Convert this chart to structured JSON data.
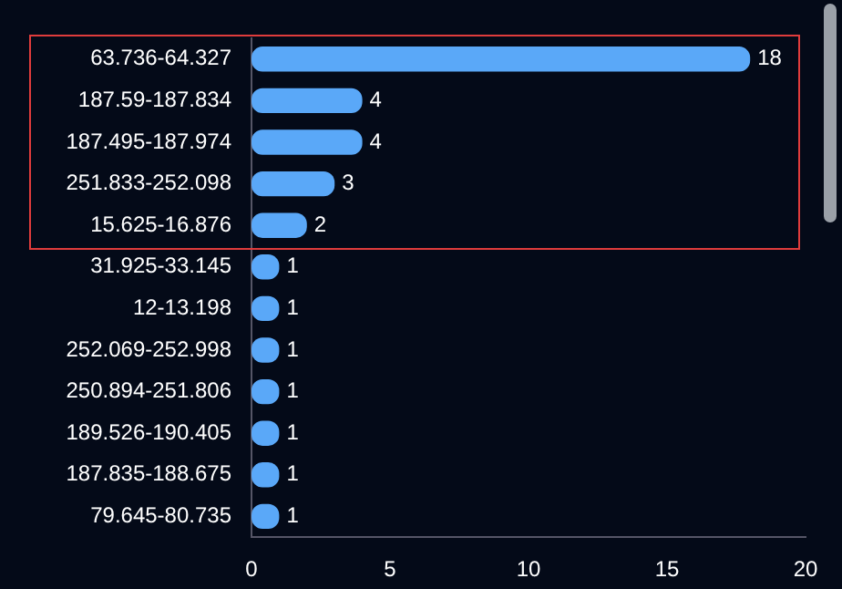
{
  "chart_data": {
    "type": "bar",
    "orientation": "horizontal",
    "categories": [
      "63.736-64.327",
      "187.59-187.834",
      "187.495-187.974",
      "251.833-252.098",
      "15.625-16.876",
      "31.925-33.145",
      "12-13.198",
      "252.069-252.998",
      "250.894-251.806",
      "189.526-190.405",
      "187.835-188.675",
      "79.645-80.735"
    ],
    "values": [
      18,
      4,
      4,
      3,
      2,
      1,
      1,
      1,
      1,
      1,
      1,
      1
    ],
    "color": "#5aa8f8",
    "xlim": [
      0,
      20
    ],
    "xticks": [
      0,
      5,
      10,
      15,
      20
    ],
    "grid": false,
    "data_labels": true
  }
}
